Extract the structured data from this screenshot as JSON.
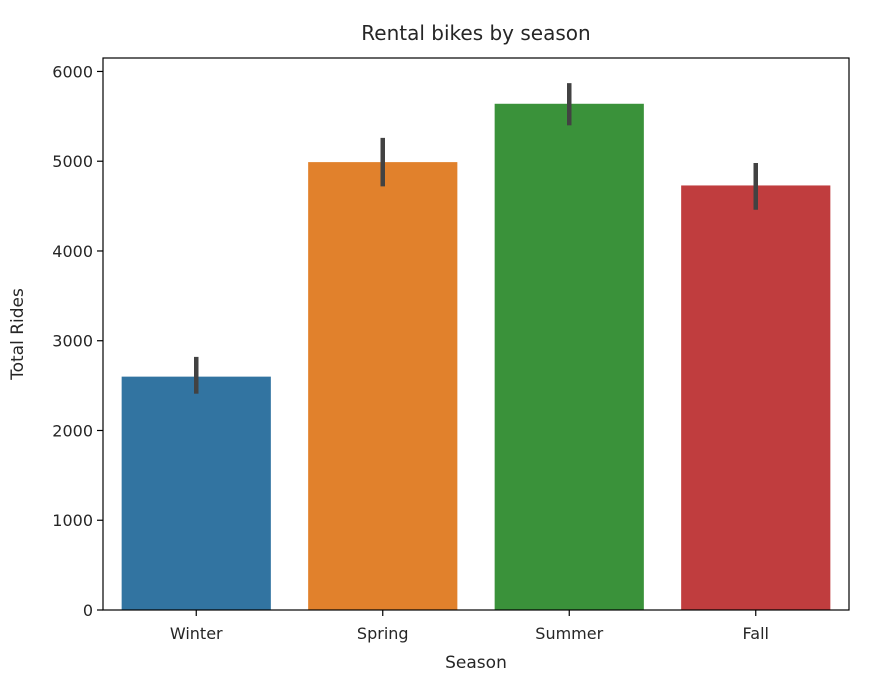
{
  "chart_data": {
    "type": "bar",
    "title": "Rental bikes by season",
    "xlabel": "Season",
    "ylabel": "Total Rides",
    "categories": [
      "Winter",
      "Spring",
      "Summer",
      "Fall"
    ],
    "values": [
      2600,
      4990,
      5640,
      4730
    ],
    "error_low": [
      2410,
      4720,
      5400,
      4460
    ],
    "error_high": [
      2820,
      5260,
      5870,
      4980
    ],
    "colors": [
      "#3274a1",
      "#e1812c",
      "#3a923a",
      "#c03d3e"
    ],
    "error_bar_color": "#424242",
    "ylim": [
      0,
      6150
    ],
    "yticks": [
      0,
      1000,
      2000,
      3000,
      4000,
      5000,
      6000
    ],
    "grid": false,
    "legend": "none"
  }
}
